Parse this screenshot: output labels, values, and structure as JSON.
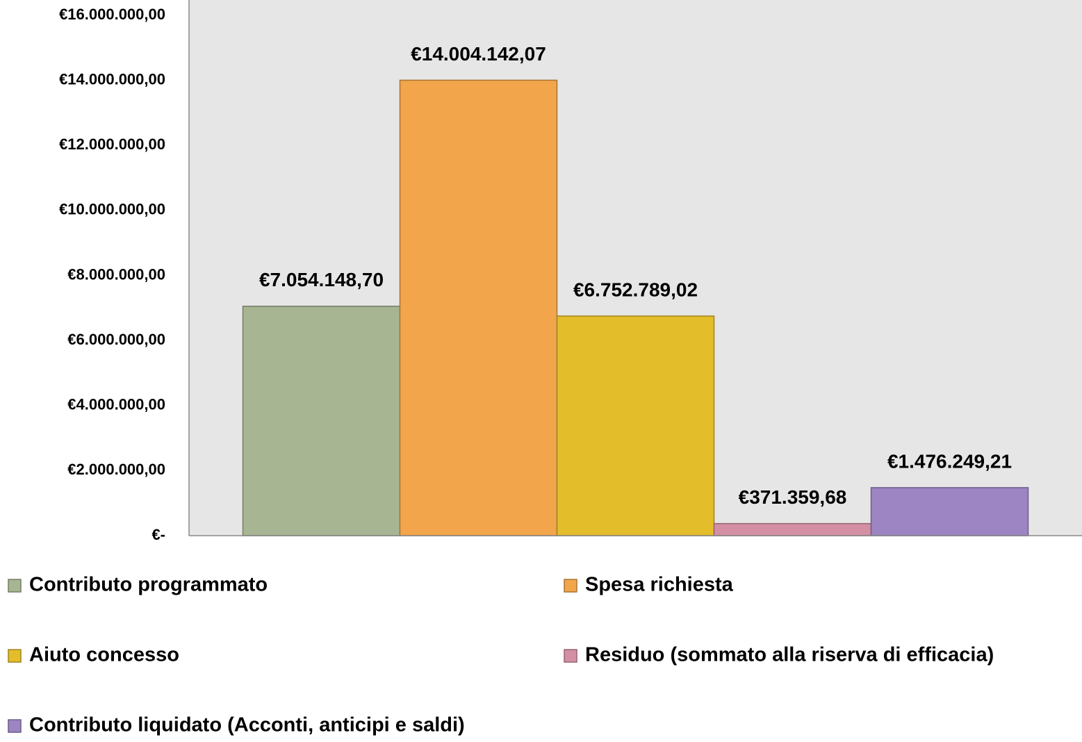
{
  "chart_data": {
    "type": "bar",
    "categories": [
      null
    ],
    "series": [
      {
        "name": "Contributo programmato",
        "color": "#a7b592",
        "values": [
          7054148.7
        ],
        "value_labels": [
          "€7.054.148,70"
        ]
      },
      {
        "name": "Spesa richiesta",
        "color": "#f2a54a",
        "values": [
          14004142.07
        ],
        "value_labels": [
          "€14.004.142,07"
        ]
      },
      {
        "name": "Aiuto concesso",
        "color": "#e4bd2b",
        "values": [
          6752789.02
        ],
        "value_labels": [
          "€6.752.789,02"
        ]
      },
      {
        "name": "Residuo (sommato alla riserva di efficacia)",
        "color": "#d48fa4",
        "values": [
          371359.68
        ],
        "value_labels": [
          "€371.359,68"
        ]
      },
      {
        "name": "Contributo liquidato (Acconti, anticipi e saldi)",
        "color": "#9c85c2",
        "values": [
          1476249.21
        ],
        "value_labels": [
          "€1.476.249,21"
        ]
      }
    ],
    "ylim": [
      0,
      16000000
    ],
    "yticks": [
      {
        "value": 0,
        "label": "€-"
      },
      {
        "value": 2000000,
        "label": "€2.000.000,00"
      },
      {
        "value": 4000000,
        "label": "€4.000.000,00"
      },
      {
        "value": 6000000,
        "label": "€6.000.000,00"
      },
      {
        "value": 8000000,
        "label": "€8.000.000,00"
      },
      {
        "value": 10000000,
        "label": "€10.000.000,00"
      },
      {
        "value": 12000000,
        "label": "€12.000.000,00"
      },
      {
        "value": 14000000,
        "label": "€14.000.000,00"
      },
      {
        "value": 16000000,
        "label": "€16.000.000,00"
      }
    ],
    "grid": false,
    "legend": "bottom"
  }
}
